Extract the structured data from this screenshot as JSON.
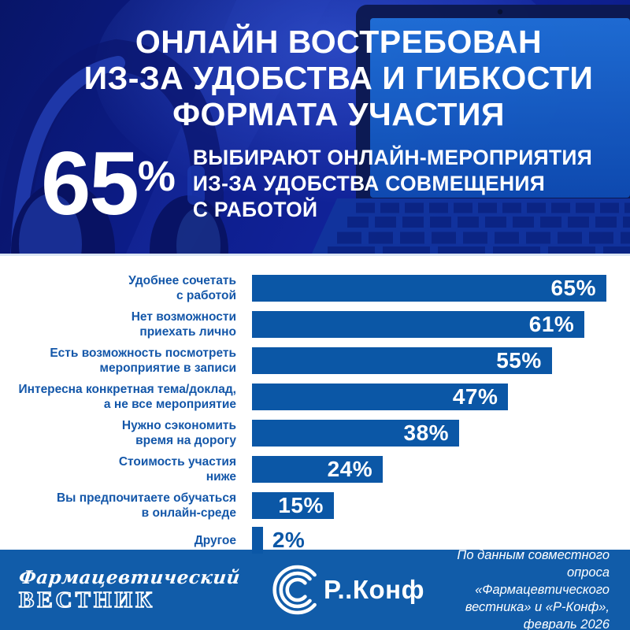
{
  "header": {
    "title_lines": [
      "ОНЛАЙН ВОСТРЕБОВАН",
      "ИЗ-ЗА УДОБСТВА И ГИБКОСТИ",
      "ФОРМАТА УЧАСТИЯ"
    ],
    "stat": {
      "value": "65",
      "unit": "%",
      "description_lines": [
        "ВЫБИРАЮТ ОНЛАЙН-МЕРОПРИЯТИЯ",
        "ИЗ-ЗА УДОБСТВА СОВМЕЩЕНИЯ",
        "С РАБОТОЙ"
      ]
    }
  },
  "chart_data": {
    "type": "bar",
    "orientation": "horizontal",
    "xlim": [
      0,
      65
    ],
    "grid": false,
    "legend": false,
    "value_suffix": "%",
    "rows": [
      {
        "label": "Удобнее сочетать\nс работой",
        "value": 65,
        "display": "65%",
        "label_position": "inside"
      },
      {
        "label": "Нет возможности\nприехать лично",
        "value": 61,
        "display": "61%",
        "label_position": "inside"
      },
      {
        "label": "Есть возможность посмотреть\nмероприятие в записи",
        "value": 55,
        "display": "55%",
        "label_position": "inside"
      },
      {
        "label": "Интересна конкретная тема/доклад,\nа не все мероприятие",
        "value": 47,
        "display": "47%",
        "label_position": "inside"
      },
      {
        "label": "Нужно сэкономить\nвремя на дорогу",
        "value": 38,
        "display": "38%",
        "label_position": "inside"
      },
      {
        "label": "Стоимость участия\nниже",
        "value": 24,
        "display": "24%",
        "label_position": "inside"
      },
      {
        "label": "Вы предпочитаете обучаться\nв онлайн-среде",
        "value": 15,
        "display": "15%",
        "label_position": "inside"
      },
      {
        "label": "Другое",
        "value": 2,
        "display": "2%",
        "label_position": "outside"
      }
    ]
  },
  "footer": {
    "vestnik_logo": {
      "line1": "Фармацевтический",
      "line2": "ВЕСТНИК"
    },
    "rconf_logo_text": "Р..Конф",
    "source_lines": [
      "По данным совместного опроса",
      "«Фармацевтического вестника» и «Р-Конф»,",
      "февраль 2026"
    ]
  },
  "colors": {
    "hero_bg": "#0d1d8c",
    "bar_blue": "#0b57a6",
    "label_blue": "#1457a9",
    "footer_bg": "#115ca9",
    "screen_blue": "#1a66cb",
    "separator": "#d9e5f4"
  }
}
